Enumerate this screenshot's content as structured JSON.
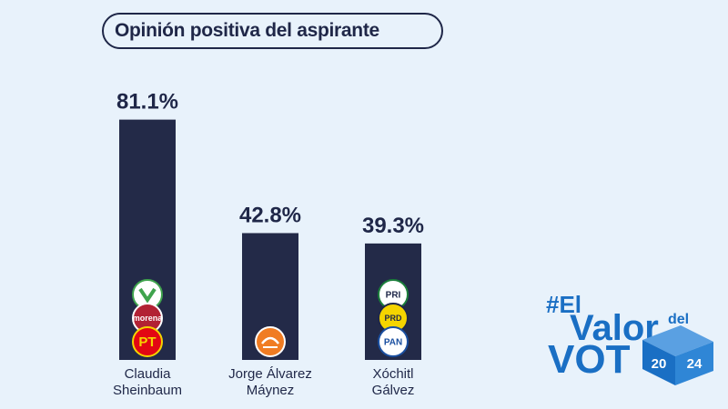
{
  "title": "Opinión positiva del aspirante",
  "chart_data": {
    "type": "bar",
    "categories": [
      [
        "Claudia",
        "Sheinbaum"
      ],
      [
        "Jorge Álvarez",
        "Máynez"
      ],
      [
        "Xóchitl",
        "Gálvez"
      ]
    ],
    "values": [
      81.1,
      42.8,
      39.3
    ],
    "value_labels": [
      "81.1%",
      "42.8%",
      "39.3%"
    ],
    "ylim": [
      0,
      100
    ],
    "bar_color": "#232a48",
    "party_logos": [
      [
        "PVEM",
        "morena",
        "PT"
      ],
      [
        "MC"
      ],
      [
        "PRI",
        "PRD",
        "PAN"
      ]
    ]
  },
  "brand": {
    "lines": [
      "#El",
      "Valor",
      "del",
      "VOT",
      "20",
      "24"
    ],
    "color": "#1a6fc4"
  }
}
